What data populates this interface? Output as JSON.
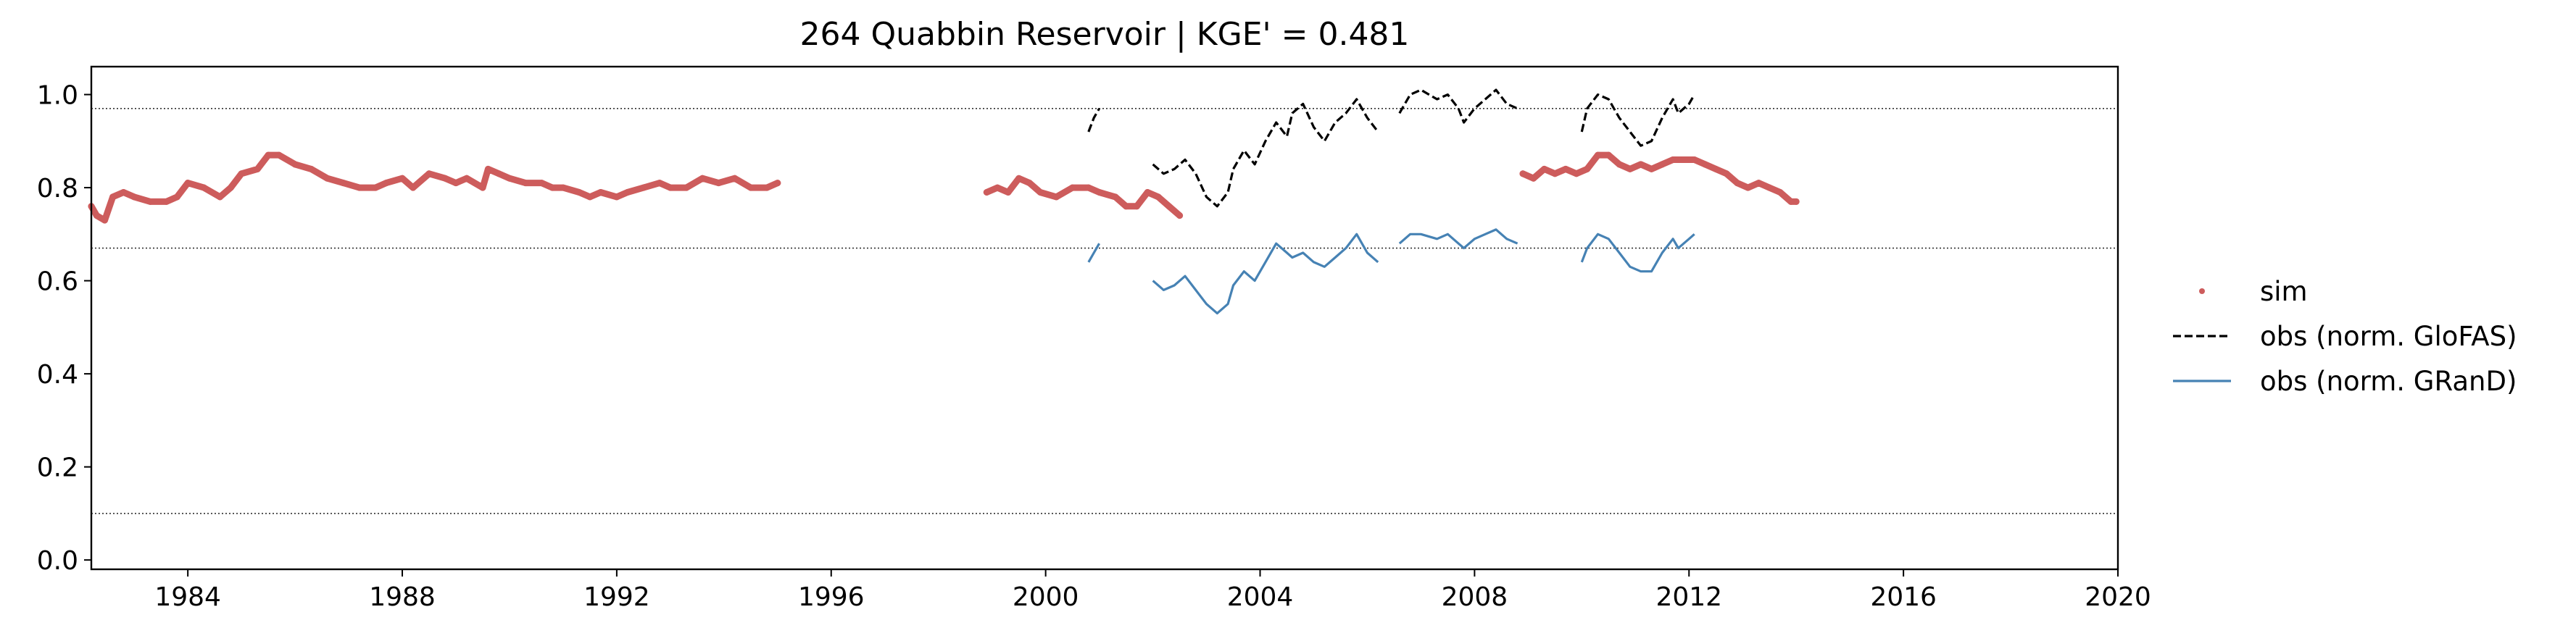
{
  "chart_data": {
    "type": "line",
    "title": "264  Quabbin Reservoir | KGE' = 0.481",
    "xlabel": "",
    "ylabel": "",
    "xlim": [
      1982.2,
      2020.0
    ],
    "ylim": [
      -0.02,
      1.06
    ],
    "x_ticks": [
      1984,
      1988,
      1992,
      1996,
      2000,
      2004,
      2008,
      2012,
      2016,
      2020
    ],
    "y_ticks": [
      0.0,
      0.2,
      0.4,
      0.6,
      0.8,
      1.0
    ],
    "reference_lines": [
      0.97,
      0.67,
      0.1
    ],
    "grid": false,
    "legend_position": "right, outside plot",
    "colors": {
      "sim": "#cd5c5c",
      "obs_glofas": "#000000",
      "obs_grand": "#4682b4"
    },
    "series": [
      {
        "name": "sim",
        "style": "points",
        "segments": [
          [
            [
              1982.2,
              0.76
            ],
            [
              1982.3,
              0.74
            ],
            [
              1982.45,
              0.73
            ],
            [
              1982.6,
              0.78
            ],
            [
              1982.8,
              0.79
            ],
            [
              1983.0,
              0.78
            ],
            [
              1983.3,
              0.77
            ],
            [
              1983.6,
              0.77
            ],
            [
              1983.8,
              0.78
            ],
            [
              1984.0,
              0.81
            ],
            [
              1984.3,
              0.8
            ],
            [
              1984.6,
              0.78
            ],
            [
              1984.8,
              0.8
            ],
            [
              1985.0,
              0.83
            ],
            [
              1985.3,
              0.84
            ],
            [
              1985.5,
              0.87
            ],
            [
              1985.7,
              0.87
            ],
            [
              1986.0,
              0.85
            ],
            [
              1986.3,
              0.84
            ],
            [
              1986.6,
              0.82
            ],
            [
              1986.9,
              0.81
            ],
            [
              1987.2,
              0.8
            ],
            [
              1987.5,
              0.8
            ],
            [
              1987.7,
              0.81
            ],
            [
              1988.0,
              0.82
            ],
            [
              1988.2,
              0.8
            ],
            [
              1988.5,
              0.83
            ],
            [
              1988.8,
              0.82
            ],
            [
              1989.0,
              0.81
            ],
            [
              1989.2,
              0.82
            ],
            [
              1989.5,
              0.8
            ],
            [
              1989.6,
              0.84
            ],
            [
              1989.8,
              0.83
            ],
            [
              1990.0,
              0.82
            ],
            [
              1990.3,
              0.81
            ],
            [
              1990.6,
              0.81
            ],
            [
              1990.8,
              0.8
            ],
            [
              1991.0,
              0.8
            ],
            [
              1991.3,
              0.79
            ],
            [
              1991.5,
              0.78
            ],
            [
              1991.7,
              0.79
            ],
            [
              1992.0,
              0.78
            ],
            [
              1992.2,
              0.79
            ],
            [
              1992.5,
              0.8
            ],
            [
              1992.8,
              0.81
            ],
            [
              1993.0,
              0.8
            ],
            [
              1993.3,
              0.8
            ],
            [
              1993.6,
              0.82
            ],
            [
              1993.9,
              0.81
            ],
            [
              1994.2,
              0.82
            ],
            [
              1994.5,
              0.8
            ],
            [
              1994.8,
              0.8
            ],
            [
              1995.0,
              0.81
            ]
          ],
          [
            [
              1998.9,
              0.79
            ],
            [
              1999.1,
              0.8
            ],
            [
              1999.3,
              0.79
            ],
            [
              1999.5,
              0.82
            ],
            [
              1999.7,
              0.81
            ],
            [
              1999.9,
              0.79
            ],
            [
              2000.2,
              0.78
            ],
            [
              2000.5,
              0.8
            ],
            [
              2000.8,
              0.8
            ],
            [
              2001.0,
              0.79
            ],
            [
              2001.3,
              0.78
            ],
            [
              2001.5,
              0.76
            ],
            [
              2001.7,
              0.76
            ],
            [
              2001.9,
              0.79
            ],
            [
              2002.1,
              0.78
            ],
            [
              2002.3,
              0.76
            ],
            [
              2002.5,
              0.74
            ]
          ],
          [
            [
              2008.9,
              0.83
            ],
            [
              2009.1,
              0.82
            ],
            [
              2009.3,
              0.84
            ],
            [
              2009.5,
              0.83
            ],
            [
              2009.7,
              0.84
            ],
            [
              2009.9,
              0.83
            ],
            [
              2010.1,
              0.84
            ],
            [
              2010.3,
              0.87
            ],
            [
              2010.5,
              0.87
            ],
            [
              2010.7,
              0.85
            ],
            [
              2010.9,
              0.84
            ],
            [
              2011.1,
              0.85
            ],
            [
              2011.3,
              0.84
            ],
            [
              2011.5,
              0.85
            ],
            [
              2011.7,
              0.86
            ],
            [
              2011.9,
              0.86
            ],
            [
              2012.1,
              0.86
            ],
            [
              2012.3,
              0.85
            ],
            [
              2012.5,
              0.84
            ],
            [
              2012.7,
              0.83
            ],
            [
              2012.9,
              0.81
            ],
            [
              2013.1,
              0.8
            ],
            [
              2013.3,
              0.81
            ],
            [
              2013.5,
              0.8
            ],
            [
              2013.7,
              0.79
            ],
            [
              2013.9,
              0.77
            ],
            [
              2014.0,
              0.77
            ]
          ]
        ]
      },
      {
        "name": "obs (norm. GloFAS)",
        "style": "dashed",
        "segments": [
          [
            [
              2000.8,
              0.92
            ],
            [
              2000.9,
              0.95
            ],
            [
              2001.0,
              0.97
            ]
          ],
          [
            [
              2002.0,
              0.85
            ],
            [
              2002.2,
              0.83
            ],
            [
              2002.4,
              0.84
            ],
            [
              2002.6,
              0.86
            ],
            [
              2002.8,
              0.83
            ],
            [
              2003.0,
              0.78
            ],
            [
              2003.2,
              0.76
            ],
            [
              2003.4,
              0.79
            ],
            [
              2003.5,
              0.84
            ],
            [
              2003.7,
              0.88
            ],
            [
              2003.9,
              0.85
            ],
            [
              2004.1,
              0.9
            ],
            [
              2004.3,
              0.94
            ],
            [
              2004.5,
              0.91
            ],
            [
              2004.6,
              0.96
            ],
            [
              2004.8,
              0.98
            ],
            [
              2005.0,
              0.93
            ],
            [
              2005.2,
              0.9
            ],
            [
              2005.4,
              0.94
            ],
            [
              2005.6,
              0.96
            ],
            [
              2005.8,
              0.99
            ],
            [
              2006.0,
              0.95
            ],
            [
              2006.2,
              0.92
            ]
          ],
          [
            [
              2006.6,
              0.96
            ],
            [
              2006.8,
              1.0
            ],
            [
              2007.0,
              1.01
            ],
            [
              2007.3,
              0.99
            ],
            [
              2007.5,
              1.0
            ],
            [
              2007.7,
              0.97
            ],
            [
              2007.8,
              0.94
            ],
            [
              2008.0,
              0.97
            ],
            [
              2008.2,
              0.99
            ],
            [
              2008.4,
              1.01
            ],
            [
              2008.6,
              0.98
            ],
            [
              2008.8,
              0.97
            ]
          ],
          [
            [
              2010.0,
              0.92
            ],
            [
              2010.1,
              0.97
            ],
            [
              2010.3,
              1.0
            ],
            [
              2010.5,
              0.99
            ],
            [
              2010.7,
              0.95
            ],
            [
              2010.9,
              0.92
            ],
            [
              2011.1,
              0.89
            ],
            [
              2011.3,
              0.9
            ],
            [
              2011.5,
              0.95
            ],
            [
              2011.7,
              0.99
            ],
            [
              2011.8,
              0.96
            ],
            [
              2012.0,
              0.98
            ],
            [
              2012.1,
              1.0
            ]
          ]
        ]
      },
      {
        "name": "obs (norm. GRanD)",
        "style": "line",
        "segments": [
          [
            [
              2000.8,
              0.64
            ],
            [
              2000.9,
              0.66
            ],
            [
              2001.0,
              0.68
            ]
          ],
          [
            [
              2002.0,
              0.6
            ],
            [
              2002.2,
              0.58
            ],
            [
              2002.4,
              0.59
            ],
            [
              2002.6,
              0.61
            ],
            [
              2002.8,
              0.58
            ],
            [
              2003.0,
              0.55
            ],
            [
              2003.2,
              0.53
            ],
            [
              2003.4,
              0.55
            ],
            [
              2003.5,
              0.59
            ],
            [
              2003.7,
              0.62
            ],
            [
              2003.9,
              0.6
            ],
            [
              2004.1,
              0.64
            ],
            [
              2004.3,
              0.68
            ],
            [
              2004.5,
              0.66
            ],
            [
              2004.6,
              0.65
            ],
            [
              2004.8,
              0.66
            ],
            [
              2005.0,
              0.64
            ],
            [
              2005.2,
              0.63
            ],
            [
              2005.4,
              0.65
            ],
            [
              2005.6,
              0.67
            ],
            [
              2005.8,
              0.7
            ],
            [
              2006.0,
              0.66
            ],
            [
              2006.2,
              0.64
            ]
          ],
          [
            [
              2006.6,
              0.68
            ],
            [
              2006.8,
              0.7
            ],
            [
              2007.0,
              0.7
            ],
            [
              2007.3,
              0.69
            ],
            [
              2007.5,
              0.7
            ],
            [
              2007.7,
              0.68
            ],
            [
              2007.8,
              0.67
            ],
            [
              2008.0,
              0.69
            ],
            [
              2008.2,
              0.7
            ],
            [
              2008.4,
              0.71
            ],
            [
              2008.6,
              0.69
            ],
            [
              2008.8,
              0.68
            ]
          ],
          [
            [
              2010.0,
              0.64
            ],
            [
              2010.1,
              0.67
            ],
            [
              2010.3,
              0.7
            ],
            [
              2010.5,
              0.69
            ],
            [
              2010.7,
              0.66
            ],
            [
              2010.9,
              0.63
            ],
            [
              2011.1,
              0.62
            ],
            [
              2011.3,
              0.62
            ],
            [
              2011.5,
              0.66
            ],
            [
              2011.7,
              0.69
            ],
            [
              2011.8,
              0.67
            ],
            [
              2012.0,
              0.69
            ],
            [
              2012.1,
              0.7
            ]
          ]
        ]
      }
    ],
    "legend": [
      {
        "label": "sim",
        "marker": "dot"
      },
      {
        "label": "obs (norm. GloFAS)",
        "marker": "dashed"
      },
      {
        "label": "obs (norm. GRanD)",
        "marker": "line"
      }
    ]
  }
}
